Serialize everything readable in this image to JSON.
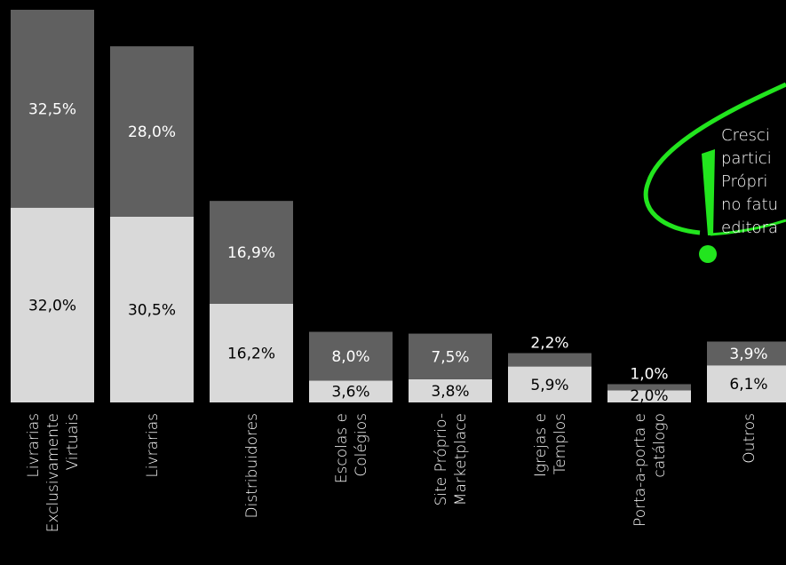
{
  "chart_data": {
    "type": "bar",
    "stacked": true,
    "categories": [
      [
        "Livrarias",
        "Exclusivamente",
        "Virtuais"
      ],
      [
        "Livrarias"
      ],
      [
        "Distribuidores"
      ],
      [
        "Escolas e",
        "Colégios"
      ],
      [
        "Site Próprio-",
        "Marketplace"
      ],
      [
        "Igrejas e",
        "Templos"
      ],
      [
        "Porta-a-porta e",
        "catálogo"
      ],
      [
        "Outros"
      ]
    ],
    "series": [
      {
        "color": "#d9d9d9",
        "label_color": "#000000",
        "values": [
          32.0,
          30.5,
          16.2,
          3.6,
          3.8,
          5.9,
          2.0,
          6.1
        ],
        "labels": [
          "32,0%",
          "30,5%",
          "16,2%",
          "3,6%",
          "3,8%",
          "5,9%",
          "2,0%",
          "6,1%"
        ]
      },
      {
        "color": "#606060",
        "label_color": "#ffffff",
        "values": [
          32.5,
          28.0,
          16.9,
          8.0,
          7.5,
          2.2,
          1.0,
          3.9
        ],
        "labels": [
          "32,5%",
          "28,0%",
          "16,9%",
          "8,0%",
          "7,5%",
          "2,2%",
          "1,0%",
          "3,9%"
        ]
      }
    ],
    "ylim": [
      0,
      64.5
    ],
    "grid": false,
    "legend": "none"
  },
  "annotation": {
    "lines": [
      "Cresci",
      "partici",
      "Própri",
      "no fatu",
      "editora"
    ],
    "accent_color": "#22e51e"
  }
}
